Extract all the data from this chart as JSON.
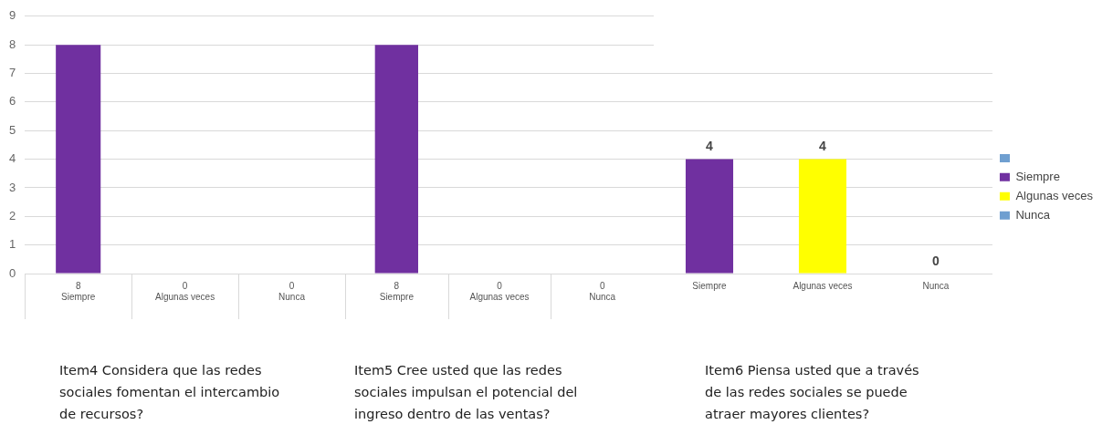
{
  "chart_data": [
    {
      "type": "bar",
      "title": "Item4 Considera que las redes sociales fomentan el intercambio de recursos?",
      "categories": [
        "Siempre",
        "Algunas veces",
        "Nunca"
      ],
      "values": [
        8,
        0,
        0
      ],
      "color": "#7030a0",
      "ylim": [
        0,
        9
      ],
      "yticks": [
        0,
        1,
        2,
        3,
        4,
        5,
        6,
        7,
        8,
        9
      ],
      "grid": "y",
      "data_labels": true,
      "legend": false
    },
    {
      "type": "bar",
      "title": "Item5 Cree usted que las redes sociales impulsan el potencial del ingreso dentro de las ventas?",
      "categories": [
        "Siempre",
        "Algunas veces",
        "Nunca"
      ],
      "values": [
        8,
        0,
        0
      ],
      "color": "#7030a0",
      "ylim": [
        0,
        9
      ],
      "yticks": [
        0,
        1,
        2,
        3,
        4,
        5,
        6,
        7,
        8,
        9
      ],
      "grid": "y",
      "data_labels": true,
      "legend": false,
      "tick_labels": "x"
    },
    {
      "type": "bar",
      "title": "Item6 Piensa usted que a través de las redes sociales se puede atraer mayores clientes?",
      "categories": [
        "Siempre",
        "Algunas veces",
        "Nunca"
      ],
      "series": [
        {
          "name": "Siempre",
          "color": "#7030a0",
          "values": [
            4,
            null,
            null
          ]
        },
        {
          "name": "Algunas veces",
          "color": "#ffff00",
          "values": [
            null,
            4,
            null
          ]
        },
        {
          "name": "Nunca",
          "color": "#6f9fd0",
          "values": [
            null,
            null,
            0
          ]
        }
      ],
      "ylim": [
        0,
        7
      ],
      "yticks": [
        0,
        1,
        2,
        3,
        4,
        5,
        6,
        7
      ],
      "grid": "y",
      "data_labels": true,
      "legend": "right",
      "tick_labels": "x"
    }
  ]
}
